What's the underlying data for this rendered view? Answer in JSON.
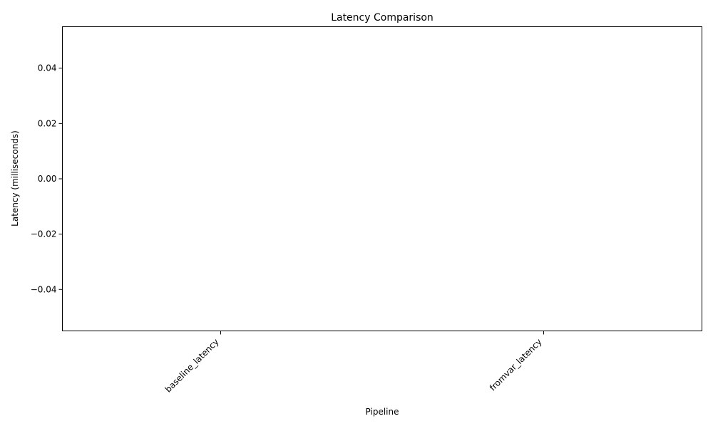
{
  "chart_data": {
    "type": "bar",
    "title": "Latency Comparison",
    "xlabel": "Pipeline",
    "ylabel": "Latency (milliseconds)",
    "categories": [
      "baseline_latency",
      "fromvar_latency"
    ],
    "values": [
      0,
      0
    ],
    "ylim": [
      -0.055,
      0.055
    ],
    "yticks": [
      -0.04,
      -0.02,
      0.0,
      0.02,
      0.04
    ],
    "ytick_labels": [
      "−0.04",
      "−0.02",
      "0.00",
      "0.02",
      "0.04"
    ],
    "grid": false,
    "legend": "none"
  }
}
